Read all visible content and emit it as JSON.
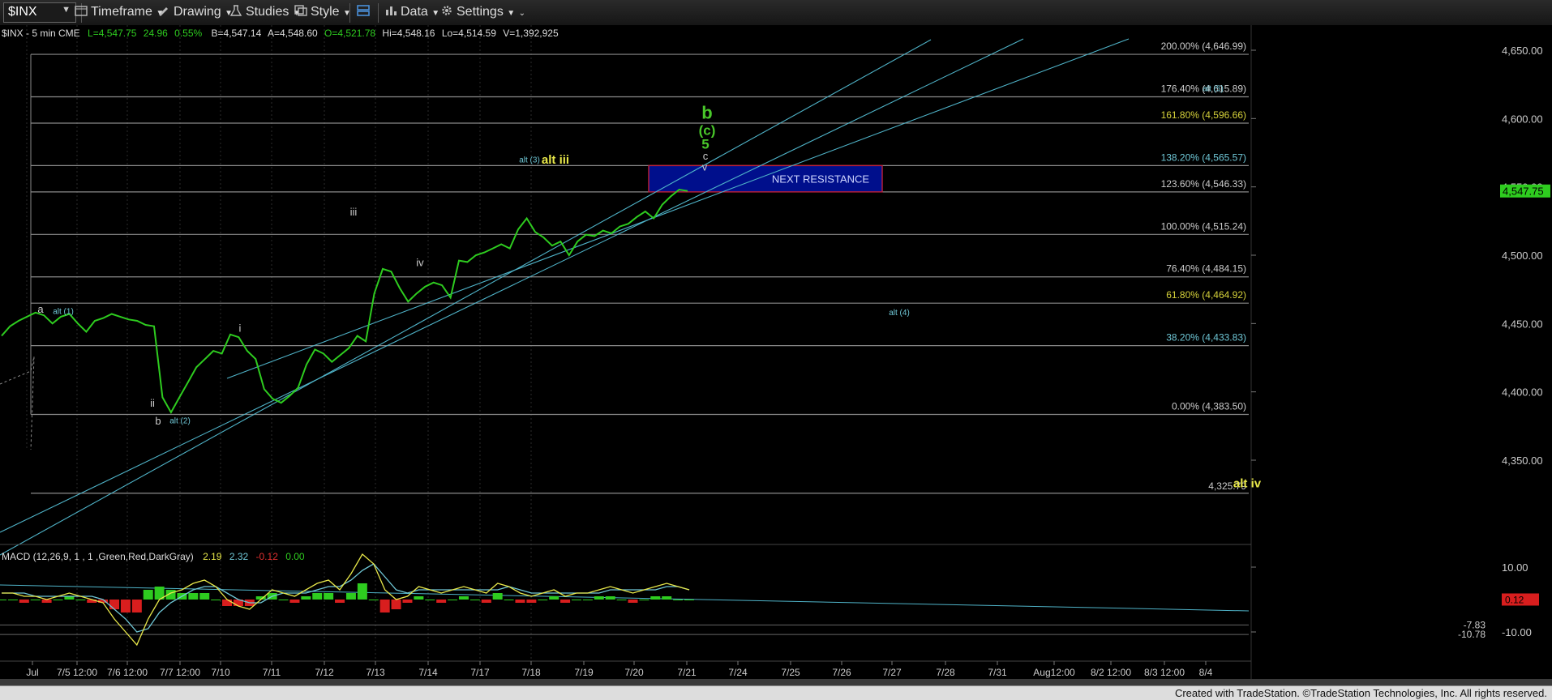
{
  "toolbar": {
    "symbol": "$INX",
    "timeframe": "Timeframe",
    "drawing": "Drawing",
    "studies": "Studies",
    "style": "Style",
    "data": "Data",
    "settings": "Settings"
  },
  "header": {
    "title": "$INX - 5 min  CME",
    "last": "L=4,547.75",
    "change": "24.96",
    "change_pct": "0.55%",
    "bid": "B=4,547.14",
    "ask": "A=4,548.60",
    "open": "O=4,521.78",
    "high": "Hi=4,548.16",
    "low": "Lo=4,514.59",
    "volume": "V=1,392,925"
  },
  "price_label": "4,547.75",
  "colors": {
    "price": "#2ecc1f",
    "fib_line": "#8a8a8a",
    "channel": "#4fb3c8",
    "wave_green": "#49c82a",
    "wave_yellow": "#e8e84a",
    "wave_cyan": "#6fc7d6",
    "resistance_box": "#000f8c"
  },
  "chart_data": {
    "type": "line",
    "title": "$INX - 5 min",
    "y_axis_ticks": [
      "4,650.00",
      "4,600.00",
      "4,550.00",
      "4,500.00",
      "4,450.00",
      "4,400.00",
      "4,350.00"
    ],
    "ylim": [
      4318,
      4665
    ],
    "x_tick_labels": [
      "Jul",
      "7/5 12:00",
      "7/6 12:00",
      "7/7 12:00",
      "7/10",
      "7/11",
      "7/12",
      "7/13",
      "7/14",
      "7/17",
      "7/18",
      "7/19",
      "7/20",
      "7/21",
      "7/24",
      "7/25",
      "7/26",
      "7/27",
      "7/28",
      "7/31",
      "Aug12:00",
      "8/2 12:00",
      "8/3 12:00",
      "8/4"
    ],
    "series": [
      {
        "values": [
          4441,
          4448,
          4452,
          4455,
          4458,
          4456,
          4450,
          4455,
          4457,
          4450,
          4444,
          4452,
          4454,
          4457,
          4455,
          4453,
          4452,
          4449,
          4448,
          4396,
          4385,
          4396,
          4407,
          4418,
          4424,
          4430,
          4428,
          4442,
          4440,
          4430,
          4424,
          4402,
          4395,
          4392,
          4397,
          4403,
          4420,
          4431,
          4428,
          4422,
          4427,
          4432,
          4441,
          4437,
          4472,
          4490,
          4488,
          4476,
          4466,
          4472,
          4477,
          4480,
          4478,
          4469,
          4496,
          4495,
          4500,
          4502,
          4505,
          4508,
          4505,
          4519,
          4527,
          4517,
          4513,
          4507,
          4510,
          4500,
          4510,
          4515,
          4514,
          4518,
          4516,
          4521,
          4523,
          4528,
          4532,
          4527,
          4537,
          4543,
          4548,
          4547
        ]
      }
    ],
    "fib_levels": [
      {
        "label": "200.00% (4,646.99)",
        "value": 4646.99
      },
      {
        "label": "176.40% (4,615.89)",
        "value": 4615.89
      },
      {
        "label": "161.80% (4,596.66)",
        "value": 4596.66
      },
      {
        "label": "138.20% (4,565.57)",
        "value": 4565.57
      },
      {
        "label": "123.60% (4,546.33)",
        "value": 4546.33
      },
      {
        "label": "100.00% (4,515.24)",
        "value": 4515.24
      },
      {
        "label": "76.40% (4,484.15)",
        "value": 4484.15
      },
      {
        "label": "61.80% (4,464.92)",
        "value": 4464.92
      },
      {
        "label": "38.20% (4,433.83)",
        "value": 4433.83
      },
      {
        "label": "0.00% (4,383.50)",
        "value": 4383.5
      }
    ],
    "horizontal_level": {
      "label": "4,325.79",
      "value": 4325.79
    },
    "resistance_box": {
      "label": "NEXT RESISTANCE",
      "low": 4546.33,
      "high": 4565.57
    },
    "wave_labels": [
      {
        "text": "a",
        "x": "Jul",
        "y": 4458
      },
      {
        "text": "alt (1)",
        "x": "Jul",
        "y": 4457
      },
      {
        "text": "b",
        "x": "7/6 12:00",
        "y": 4376
      },
      {
        "text": "alt (2)",
        "x": "7/6 12:00",
        "y": 4377
      },
      {
        "text": "i",
        "x": "7/7 12:00",
        "y": 4444
      },
      {
        "text": "ii",
        "x": "7/10",
        "y": 4389
      },
      {
        "text": "iii",
        "x": "7/14",
        "y": 4529
      },
      {
        "text": "iv",
        "x": "7/17",
        "y": 4492
      },
      {
        "text": "alt (3)",
        "x": "7/18",
        "y": 4568
      },
      {
        "text": "alt iii",
        "x": "7/18",
        "y": 4567
      },
      {
        "text": "v",
        "x": "7/18",
        "y": 4562
      },
      {
        "text": "c",
        "x": "7/18",
        "y": 4570
      },
      {
        "text": "5",
        "x": "7/18",
        "y": 4578
      },
      {
        "text": "(c)",
        "x": "7/18",
        "y": 4588
      },
      {
        "text": "b",
        "x": "7/18",
        "y": 4600
      },
      {
        "text": "alt (4)",
        "x": "7/21",
        "y": 4456
      },
      {
        "text": "alt (5)",
        "x": "7/31",
        "y": 4620
      },
      {
        "text": "alt iv",
        "x": "7/31",
        "y": 4330
      }
    ]
  },
  "macd": {
    "title": "MACD (12,26,9, 1 , 1 ,Green,Red,DarkGray)",
    "v1": "2.19",
    "v2": "2.32",
    "v3": "-0.12",
    "v4": "0.00",
    "y_axis_ticks": [
      "10.00",
      "-10.00"
    ],
    "labels": [
      "0.12",
      "-7.83",
      "-10.78"
    ],
    "macd_values": [
      2,
      2,
      1,
      1,
      0,
      1,
      2,
      1,
      0,
      -1,
      -6,
      -10,
      -14,
      -6,
      0,
      2,
      3,
      5,
      6,
      4,
      0,
      -2,
      -3,
      0,
      3,
      2,
      1,
      3,
      5,
      6,
      3,
      8,
      14,
      11,
      3,
      0,
      1,
      4,
      3,
      2,
      3,
      4,
      3,
      2,
      5,
      4,
      2,
      1,
      2,
      3,
      1,
      2,
      2,
      3,
      4,
      3,
      2,
      3,
      4,
      5,
      4,
      3
    ],
    "signal_values": [
      2,
      2,
      2,
      1,
      1,
      1,
      1,
      1,
      1,
      0,
      -3,
      -6,
      -10,
      -9,
      -4,
      -1,
      1,
      3,
      4,
      4,
      2,
      0,
      -1,
      -1,
      1,
      2,
      2,
      2,
      3,
      4,
      4,
      6,
      9,
      11,
      7,
      3,
      2,
      3,
      3,
      3,
      3,
      3,
      3,
      3,
      3,
      4,
      3,
      2,
      2,
      2,
      2,
      2,
      2,
      2,
      3,
      3,
      3,
      3,
      3,
      4,
      4,
      3
    ]
  },
  "footer": "Created with TradeStation. ©TradeStation Technologies, Inc. All rights reserved."
}
